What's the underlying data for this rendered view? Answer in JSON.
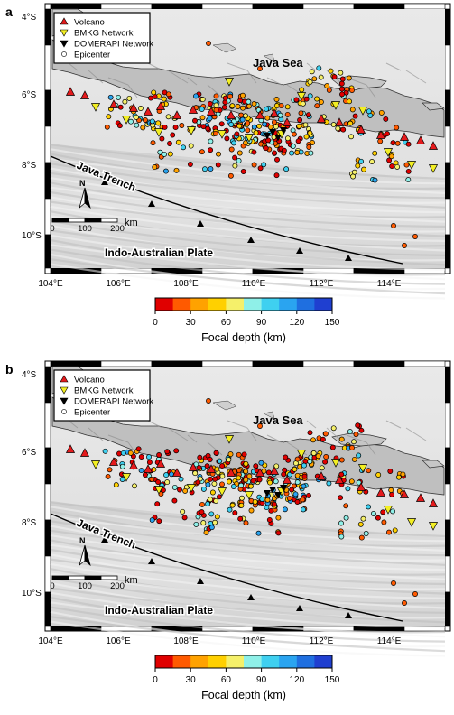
{
  "panels": [
    {
      "label": "a",
      "sea_label": "Java Sea",
      "trench_label": "Java Trench",
      "plate_label": "Indo-Australian Plate",
      "north_label": "N",
      "scale": {
        "ticks": [
          "0",
          "100",
          "200"
        ],
        "unit": "km"
      },
      "lat_labels": [
        "4°S",
        "6°S",
        "8°S",
        "10°S"
      ],
      "lon_labels": [
        "104°E",
        "106°E",
        "108°E",
        "110°E",
        "112°E",
        "114°E"
      ],
      "colorbar": {
        "title": "Focal depth (km)",
        "ticks": [
          "0",
          "30",
          "60",
          "90",
          "120",
          "150"
        ]
      }
    },
    {
      "label": "b",
      "sea_label": "Java Sea",
      "trench_label": "Java Trench",
      "plate_label": "Indo-Australian Plate",
      "north_label": "N",
      "scale": {
        "ticks": [
          "0",
          "100",
          "200"
        ],
        "unit": "km"
      },
      "lat_labels": [
        "4°S",
        "6°S",
        "8°S",
        "10°S"
      ],
      "lon_labels": [
        "104°E",
        "106°E",
        "108°E",
        "110°E",
        "112°E",
        "114°E"
      ],
      "colorbar": {
        "title": "Focal depth (km)",
        "ticks": [
          "0",
          "30",
          "60",
          "90",
          "120",
          "150"
        ]
      }
    }
  ],
  "legend": [
    {
      "symbol": "triangle-up",
      "color": "#e41a1c",
      "label": "Volcano"
    },
    {
      "symbol": "triangle-down",
      "color": "#f2ee24",
      "label": "BMKG Network"
    },
    {
      "symbol": "triangle-down",
      "color": "#000000",
      "label": "DOMERAPI Network"
    },
    {
      "symbol": "circle",
      "color": "#ffffff",
      "label": "Epicenter"
    }
  ],
  "colors": {
    "volcano": "#e41a1c",
    "bmkg": "#f2ee24",
    "domerapi": "#000000",
    "depth_scale": [
      "#e00000",
      "#ff5a00",
      "#ffa200",
      "#ffd000",
      "#f5f06a",
      "#8ff0e8",
      "#3fd0f0",
      "#2aa4f0",
      "#1f6fe0",
      "#1f3fd0"
    ]
  }
}
